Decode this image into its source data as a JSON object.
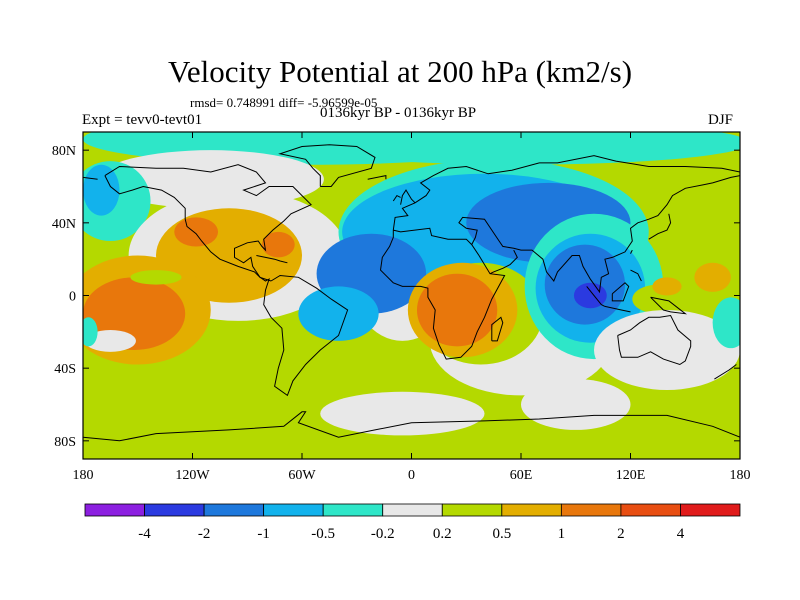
{
  "chart_data": {
    "type": "heatmap",
    "title": "Velocity Potential at 200 hPa (km2/s)",
    "stats_text": "rmsd= 0.748991 diff= -5.96599e-05",
    "left_label": "Expt = tevv0-tevt01",
    "center_label": "0136kyr BP - 0136kyr BP",
    "right_label": "DJF",
    "projection": "cylindrical equidistant",
    "xlim": [
      -180,
      180
    ],
    "ylim": [
      -90,
      90
    ],
    "x_ticks": [
      {
        "value": -180,
        "label": "180"
      },
      {
        "value": -120,
        "label": "120W"
      },
      {
        "value": -60,
        "label": "60W"
      },
      {
        "value": 0,
        "label": "0"
      },
      {
        "value": 60,
        "label": "60E"
      },
      {
        "value": 120,
        "label": "120E"
      },
      {
        "value": 180,
        "label": "180"
      }
    ],
    "y_ticks": [
      {
        "value": 80,
        "label": "80N"
      },
      {
        "value": 40,
        "label": "40N"
      },
      {
        "value": 0,
        "label": "0"
      },
      {
        "value": -40,
        "label": "40S"
      },
      {
        "value": -80,
        "label": "80S"
      }
    ],
    "colorbar": {
      "bins": [
        {
          "color": "#8c1fe0"
        },
        {
          "color": "#2b3ae0"
        },
        {
          "color": "#1e78dc"
        },
        {
          "color": "#12b2ec"
        },
        {
          "color": "#2ee6c8"
        },
        {
          "color": "#e8e8e8"
        },
        {
          "color": "#b4d900"
        },
        {
          "color": "#e3ae00"
        },
        {
          "color": "#e8770c"
        },
        {
          "color": "#e84e12"
        },
        {
          "color": "#e01b1b"
        }
      ],
      "labels": [
        "-4",
        "-2",
        "-1",
        "-0.5",
        "-0.2",
        "0.2",
        "0.5",
        "1",
        "2",
        "4"
      ]
    },
    "background_level_color": "#b4d900",
    "regions": [
      {
        "level": -0.2,
        "color": "#2ee6c8",
        "lon": -55,
        "lat": 86,
        "rx": 125,
        "ry": 14
      },
      {
        "level": -0.2,
        "color": "#2ee6c8",
        "lon": 60,
        "lat": 84,
        "rx": 125,
        "ry": 12
      },
      {
        "level": 0.2,
        "color": "#e8e8e8",
        "lon": -110,
        "lat": 64,
        "rx": 62,
        "ry": 16
      },
      {
        "level": -0.2,
        "color": "#2ee6c8",
        "lon": -165,
        "lat": 52,
        "rx": 22,
        "ry": 22
      },
      {
        "level": -0.5,
        "color": "#12b2ec",
        "lon": -170,
        "lat": 58,
        "rx": 10,
        "ry": 14
      },
      {
        "level": 0.2,
        "color": "#e8e8e8",
        "lon": -95,
        "lat": 22,
        "rx": 60,
        "ry": 36
      },
      {
        "level": 1,
        "color": "#e3ae00",
        "lon": -100,
        "lat": 22,
        "rx": 40,
        "ry": 26
      },
      {
        "level": 2,
        "color": "#e8770c",
        "lon": -118,
        "lat": 35,
        "rx": 12,
        "ry": 8
      },
      {
        "level": 2,
        "color": "#e8770c",
        "lon": -73,
        "lat": 28,
        "rx": 9,
        "ry": 7
      },
      {
        "level": 1,
        "color": "#e3ae00",
        "lon": -150,
        "lat": -8,
        "rx": 40,
        "ry": 30
      },
      {
        "level": 2,
        "color": "#e8770c",
        "lon": -152,
        "lat": -10,
        "rx": 28,
        "ry": 20
      },
      {
        "level": 0.5,
        "color": "#b4d900",
        "lon": -140,
        "lat": 10,
        "rx": 14,
        "ry": 4
      },
      {
        "level": 0.2,
        "color": "#e8e8e8",
        "lon": -165,
        "lat": -25,
        "rx": 14,
        "ry": 6
      },
      {
        "level": -0.2,
        "color": "#2ee6c8",
        "lon": -177,
        "lat": -20,
        "rx": 5,
        "ry": 8
      },
      {
        "level": 0.2,
        "color": "#e8e8e8",
        "lon": -5,
        "lat": 15,
        "rx": 30,
        "ry": 40
      },
      {
        "level": -0.2,
        "color": "#2ee6c8",
        "lon": 45,
        "lat": 35,
        "rx": 85,
        "ry": 40
      },
      {
        "level": -0.5,
        "color": "#12b2ec",
        "lon": 40,
        "lat": 35,
        "rx": 78,
        "ry": 32
      },
      {
        "level": -1,
        "color": "#1e78dc",
        "lon": 75,
        "lat": 40,
        "rx": 45,
        "ry": 22
      },
      {
        "level": -1,
        "color": "#1e78dc",
        "lon": -22,
        "lat": 12,
        "rx": 30,
        "ry": 22
      },
      {
        "level": -0.5,
        "color": "#12b2ec",
        "lon": -40,
        "lat": -10,
        "rx": 22,
        "ry": 15
      },
      {
        "level": 0.2,
        "color": "#e8e8e8",
        "lon": 60,
        "lat": -25,
        "rx": 50,
        "ry": 30
      },
      {
        "level": 0.5,
        "color": "#b4d900",
        "lon": 38,
        "lat": -10,
        "rx": 34,
        "ry": 28
      },
      {
        "level": 1,
        "color": "#e3ae00",
        "lon": 28,
        "lat": -8,
        "rx": 30,
        "ry": 26
      },
      {
        "level": 2,
        "color": "#e8770c",
        "lon": 25,
        "lat": -8,
        "rx": 22,
        "ry": 20
      },
      {
        "level": -0.2,
        "color": "#2ee6c8",
        "lon": 100,
        "lat": 5,
        "rx": 38,
        "ry": 40
      },
      {
        "level": -0.5,
        "color": "#12b2ec",
        "lon": 98,
        "lat": 4,
        "rx": 30,
        "ry": 30
      },
      {
        "level": -1,
        "color": "#1e78dc",
        "lon": 95,
        "lat": 6,
        "rx": 22,
        "ry": 22
      },
      {
        "level": -2,
        "color": "#2b3ae0",
        "lon": 98,
        "lat": 0,
        "rx": 9,
        "ry": 7
      },
      {
        "level": 0.5,
        "color": "#b4d900",
        "lon": 135,
        "lat": -2,
        "rx": 14,
        "ry": 8
      },
      {
        "level": 1,
        "color": "#e3ae00",
        "lon": 140,
        "lat": 5,
        "rx": 8,
        "ry": 5
      },
      {
        "level": 1,
        "color": "#e3ae00",
        "lon": 165,
        "lat": 10,
        "rx": 10,
        "ry": 8
      },
      {
        "level": 0.2,
        "color": "#e8e8e8",
        "lon": 140,
        "lat": -30,
        "rx": 40,
        "ry": 22
      },
      {
        "level": -0.2,
        "color": "#2ee6c8",
        "lon": 175,
        "lat": -15,
        "rx": 10,
        "ry": 14
      },
      {
        "level": 0.2,
        "color": "#e8e8e8",
        "lon": -5,
        "lat": -65,
        "rx": 45,
        "ry": 12
      },
      {
        "level": 0.2,
        "color": "#e8e8e8",
        "lon": 90,
        "lat": -60,
        "rx": 30,
        "ry": 14
      }
    ]
  }
}
